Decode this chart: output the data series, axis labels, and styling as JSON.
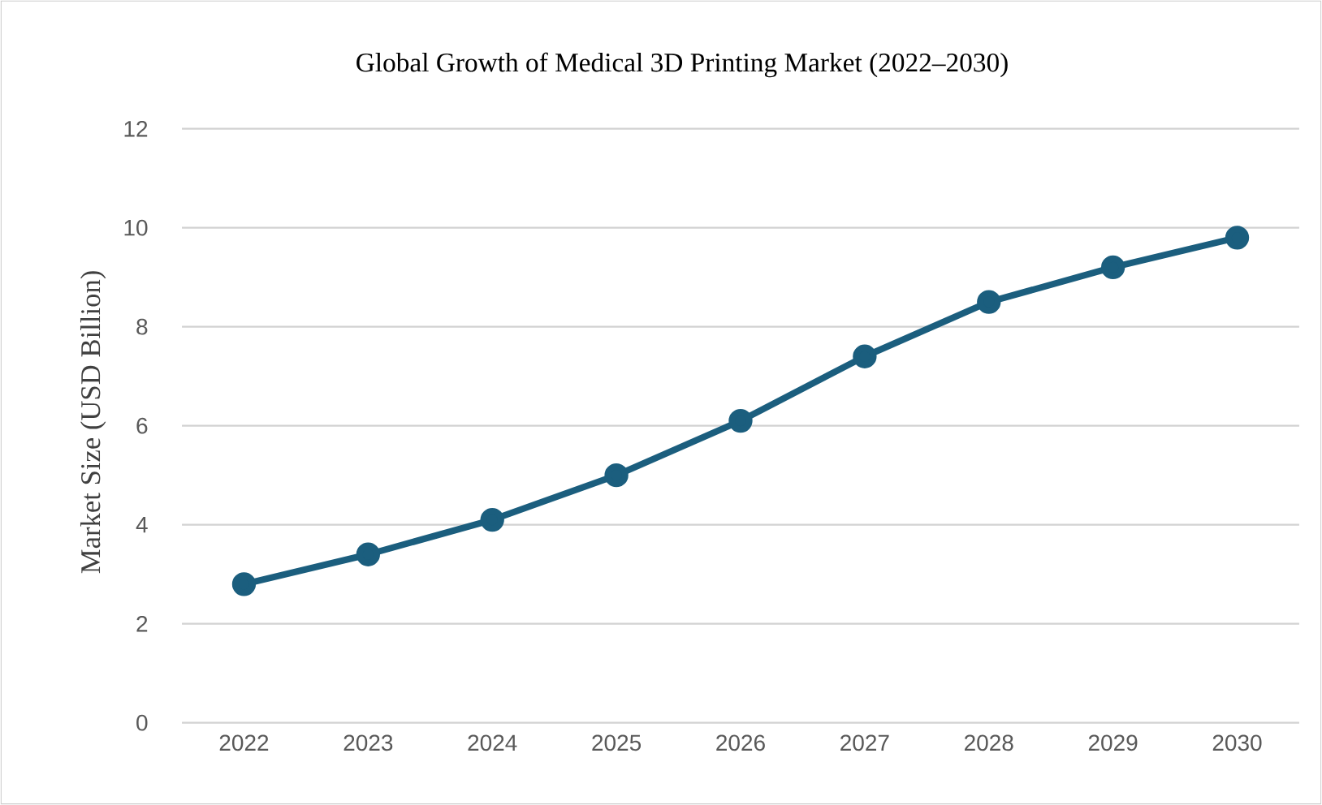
{
  "chart_data": {
    "type": "line",
    "title": "Global Growth of Medical 3D Printing Market (2022–2030)",
    "ylabel": "Market Size (USD Billion)",
    "categories": [
      "2022",
      "2023",
      "2024",
      "2025",
      "2026",
      "2027",
      "2028",
      "2029",
      "2030"
    ],
    "series": [
      {
        "color": "#1b5e7e",
        "values": [
          2.8,
          3.4,
          4.1,
          5.0,
          6.1,
          7.4,
          8.5,
          9.2,
          9.8
        ]
      }
    ],
    "ylim": [
      0,
      12
    ],
    "yticks": [
      0,
      2,
      4,
      6,
      8,
      10,
      12
    ],
    "grid": "y",
    "marker": "circle",
    "line_style": "solid"
  }
}
